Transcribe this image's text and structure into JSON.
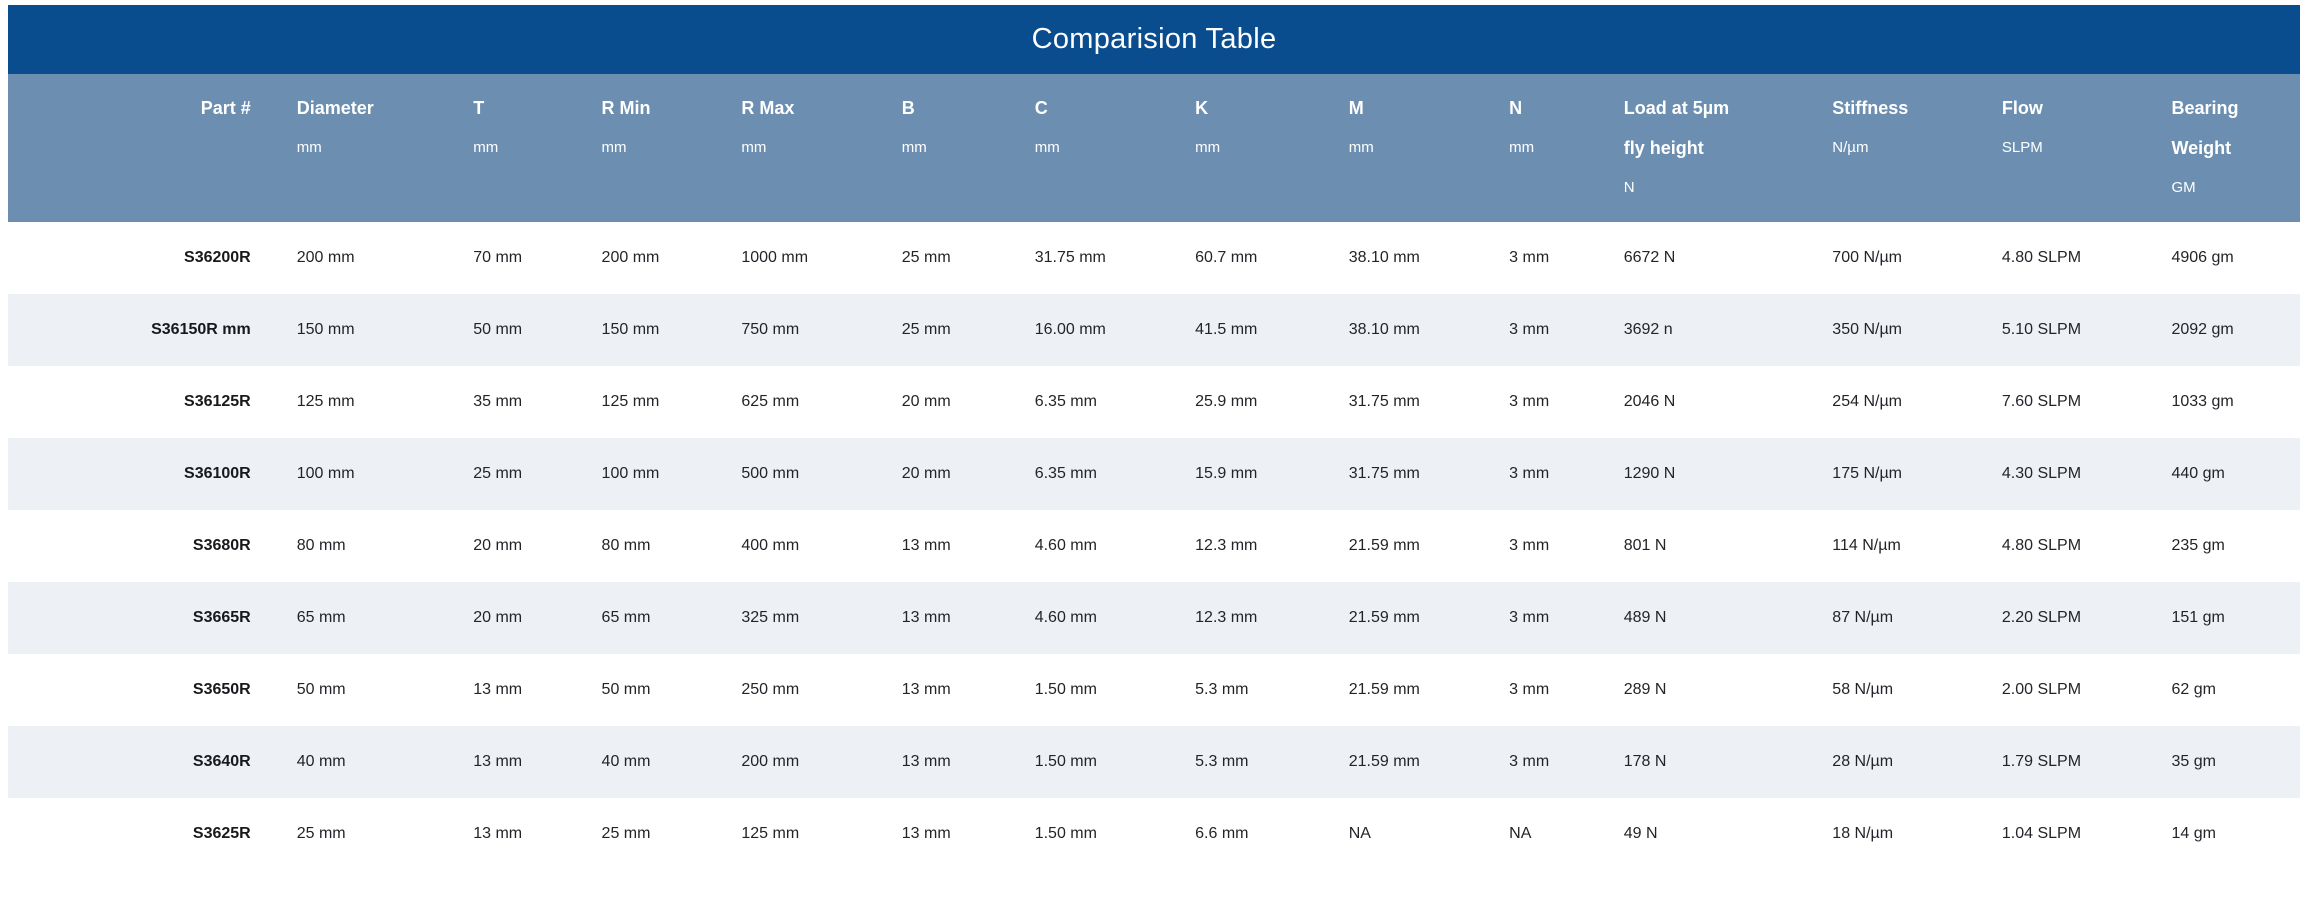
{
  "title": "Comparision Table",
  "colors": {
    "title_bar_bg": "#0a4d8f",
    "header_bg": "#6c8fb1",
    "header_text": "#ffffff",
    "row_alt_bg": "#edf1f5",
    "row_bg": "#ffffff",
    "cell_text": "#212529"
  },
  "table": {
    "columns": [
      {
        "key": "part",
        "label": "Part #",
        "label2": "",
        "unit": "",
        "width": "11.9%",
        "align": "right"
      },
      {
        "key": "diameter",
        "label": "Diameter",
        "label2": "",
        "unit": "mm",
        "width": "7.7%",
        "align": "left"
      },
      {
        "key": "t",
        "label": "T",
        "label2": "",
        "unit": "mm",
        "width": "5.6%",
        "align": "left"
      },
      {
        "key": "r-min",
        "label": "R Min",
        "label2": "",
        "unit": "mm",
        "width": "6.1%",
        "align": "left"
      },
      {
        "key": "r-max",
        "label": "R Max",
        "label2": "",
        "unit": "mm",
        "width": "7.0%",
        "align": "left"
      },
      {
        "key": "b",
        "label": "B",
        "label2": "",
        "unit": "mm",
        "width": "5.8%",
        "align": "left"
      },
      {
        "key": "c",
        "label": "C",
        "label2": "",
        "unit": "mm",
        "width": "7.0%",
        "align": "left"
      },
      {
        "key": "k",
        "label": "K",
        "label2": "",
        "unit": "mm",
        "width": "6.7%",
        "align": "left"
      },
      {
        "key": "m",
        "label": "M",
        "label2": "",
        "unit": "mm",
        "width": "7.0%",
        "align": "left"
      },
      {
        "key": "n",
        "label": "N",
        "label2": "",
        "unit": "mm",
        "width": "5.0%",
        "align": "left"
      },
      {
        "key": "load",
        "label": "Load at 5µm",
        "label2": "fly height",
        "unit": "N",
        "width": "9.1%",
        "align": "left"
      },
      {
        "key": "stiffness",
        "label": "Stiffness",
        "label2": "",
        "unit": "N/µm",
        "width": "7.4%",
        "align": "left"
      },
      {
        "key": "flow",
        "label": "Flow",
        "label2": "",
        "unit": "SLPM",
        "width": "7.4%",
        "align": "left"
      },
      {
        "key": "bearing-weight",
        "label": "Bearing",
        "label2": "Weight",
        "unit": "GM",
        "width": "6.3%",
        "align": "left"
      }
    ],
    "rows": [
      [
        "S36200R",
        "200 mm",
        "70 mm",
        "200 mm",
        "1000 mm",
        "25 mm",
        "31.75 mm",
        "60.7 mm",
        "38.10 mm",
        "3 mm",
        "6672 N",
        "700 N/µm",
        "4.80 SLPM",
        "4906 gm"
      ],
      [
        "S36150R mm",
        "150 mm",
        "50 mm",
        "150 mm",
        "750 mm",
        "25 mm",
        "16.00 mm",
        "41.5 mm",
        "38.10 mm",
        "3 mm",
        "3692 n",
        "350 N/µm",
        "5.10 SLPM",
        "2092 gm"
      ],
      [
        "S36125R",
        "125 mm",
        "35 mm",
        "125 mm",
        "625 mm",
        "20 mm",
        "6.35 mm",
        "25.9 mm",
        "31.75 mm",
        "3 mm",
        "2046 N",
        "254 N/µm",
        "7.60 SLPM",
        "1033 gm"
      ],
      [
        "S36100R",
        "100 mm",
        "25 mm",
        "100 mm",
        "500 mm",
        "20 mm",
        "6.35 mm",
        "15.9 mm",
        "31.75 mm",
        "3 mm",
        "1290 N",
        "175 N/µm",
        "4.30 SLPM",
        "440 gm"
      ],
      [
        "S3680R",
        "80 mm",
        "20 mm",
        "80 mm",
        "400 mm",
        "13 mm",
        "4.60 mm",
        "12.3 mm",
        "21.59 mm",
        "3 mm",
        "801 N",
        "114 N/µm",
        "4.80 SLPM",
        "235 gm"
      ],
      [
        "S3665R",
        "65 mm",
        "20 mm",
        "65 mm",
        "325 mm",
        "13 mm",
        "4.60 mm",
        "12.3 mm",
        "21.59 mm",
        "3 mm",
        "489 N",
        "87 N/µm",
        "2.20 SLPM",
        "151 gm"
      ],
      [
        "S3650R",
        "50 mm",
        "13 mm",
        "50 mm",
        "250 mm",
        "13 mm",
        "1.50 mm",
        "5.3 mm",
        "21.59 mm",
        "3 mm",
        "289 N",
        "58 N/µm",
        "2.00 SLPM",
        "62 gm"
      ],
      [
        "S3640R",
        "40 mm",
        "13 mm",
        "40 mm",
        "200 mm",
        "13 mm",
        "1.50 mm",
        "5.3 mm",
        "21.59 mm",
        "3 mm",
        "178 N",
        "28 N/µm",
        "1.79 SLPM",
        "35 gm"
      ],
      [
        "S3625R",
        "25 mm",
        "13 mm",
        "25 mm",
        "125 mm",
        "13 mm",
        "1.50 mm",
        "6.6 mm",
        "NA",
        "NA",
        "49 N",
        "18 N/µm",
        "1.04 SLPM",
        "14 gm"
      ]
    ]
  }
}
